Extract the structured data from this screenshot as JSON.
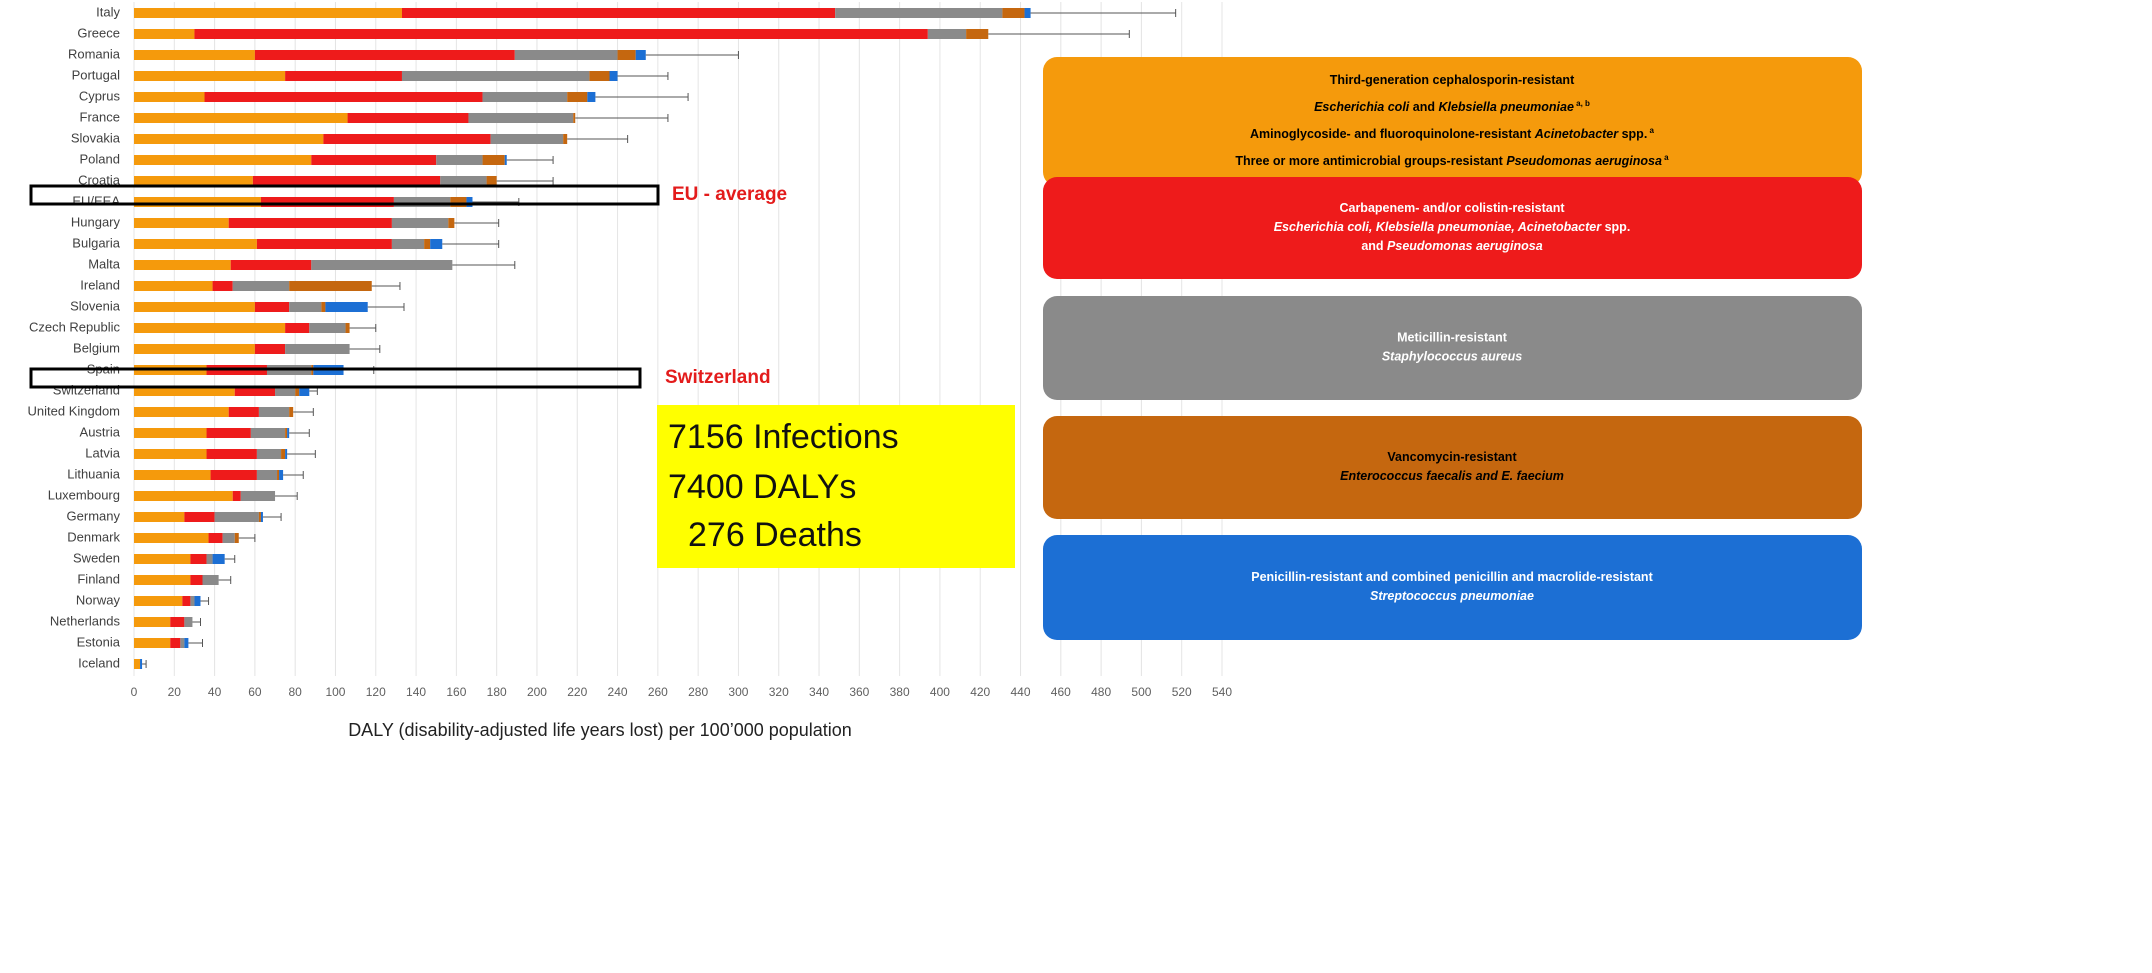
{
  "chart_data": {
    "type": "stacked-barh",
    "categories": [
      "Italy",
      "Greece",
      "Romania",
      "Portugal",
      "Cyprus",
      "France",
      "Slovakia",
      "Poland",
      "Croatia",
      "EU/EEA",
      "Hungary",
      "Bulgaria",
      "Malta",
      "Ireland",
      "Slovenia",
      "Czech Republic",
      "Belgium",
      "Spain",
      "Switzerland",
      "United Kingdom",
      "Austria",
      "Latvia",
      "Lithuania",
      "Luxembourg",
      "Germany",
      "Denmark",
      "Sweden",
      "Finland",
      "Norway",
      "Netherlands",
      "Estonia",
      "Iceland"
    ],
    "series": [
      {
        "color": "#f59a0c",
        "text_color": "#000000",
        "legend": [
          [
            {
              "text": "Third-generation cephalosporin-resistant"
            }
          ],
          [
            {
              "text": "Escherichia coli",
              "i": true
            },
            {
              "text": " and "
            },
            {
              "text": "Klebsiella pneumoniae",
              "i": true
            },
            {
              "text": " a, b",
              "sup": true
            }
          ],
          [
            {
              "text": "Aminoglycoside- and fluoroquinolone-resistant "
            },
            {
              "text": "Acinetobacter",
              "i": true
            },
            {
              "text": " spp."
            },
            {
              "text": " a",
              "sup": true
            }
          ],
          [
            {
              "text": "Three or more antimicrobial groups-resistant "
            },
            {
              "text": "Pseudomonas aeruginosa",
              "i": true
            },
            {
              "text": " a",
              "sup": true
            }
          ]
        ],
        "values": [
          133,
          30,
          60,
          75,
          35,
          106,
          94,
          88,
          59,
          63,
          47,
          61,
          48,
          39,
          60,
          75,
          60,
          36,
          50,
          47,
          36,
          36,
          38,
          49,
          25,
          37,
          28,
          28,
          24,
          18,
          18,
          3
        ]
      },
      {
        "color": "#ee1b1b",
        "text_color": "#ffffff",
        "legend": [
          [
            {
              "text": "Carbapenem- and/or colistin-resistant"
            }
          ],
          [
            {
              "text": "Escherichia coli, Klebsiella pneumoniae, Acinetobacter",
              "i": true
            },
            {
              "text": " spp."
            }
          ],
          [
            {
              "text": "and "
            },
            {
              "text": "Pseudomonas aeruginosa",
              "i": true
            }
          ]
        ],
        "values": [
          215,
          364,
          129,
          58,
          138,
          60,
          83,
          62,
          93,
          66,
          81,
          67,
          40,
          10,
          17,
          12,
          15,
          30,
          20,
          15,
          22,
          25,
          23,
          4,
          15,
          7,
          8,
          6,
          4,
          7,
          5,
          0
        ]
      },
      {
        "color": "#8a8a8a",
        "text_color": "#ffffff",
        "legend": [
          [
            {
              "text": "Meticillin-resistant"
            }
          ],
          [
            {
              "text": "Staphylococcus aureus",
              "i": true
            }
          ]
        ],
        "values": [
          83,
          19,
          51,
          93,
          42,
          52,
          36,
          23,
          23,
          28,
          28,
          16,
          70,
          28,
          16,
          18,
          32,
          22,
          10,
          15,
          17,
          12,
          10,
          17,
          22,
          6,
          3,
          8,
          2,
          4,
          2,
          0
        ]
      },
      {
        "color": "#c5670f",
        "text_color": "#000000",
        "legend": [
          [
            {
              "text": "Vancomycin-resistant"
            }
          ],
          [
            {
              "text": "Enterococcus faecalis  and E. faecium",
              "i": true
            }
          ]
        ],
        "values": [
          11,
          11,
          9,
          10,
          10,
          1,
          2,
          11,
          5,
          8,
          3,
          3,
          0,
          41,
          2,
          2,
          0,
          1,
          2,
          2,
          1,
          2,
          1,
          0,
          1,
          2,
          0,
          0,
          0,
          0,
          0,
          0
        ]
      },
      {
        "color": "#1c6fd4",
        "text_color": "#ffffff",
        "legend": [
          [
            {
              "text": "Penicillin-resistant and combined penicillin and macrolide-resistant"
            }
          ],
          [
            {
              "text": "Streptococcus pneumoniae",
              "i": true
            }
          ]
        ],
        "values": [
          3,
          0,
          5,
          4,
          4,
          0,
          0,
          1,
          0,
          3,
          0,
          6,
          0,
          0,
          21,
          0,
          0,
          15,
          5,
          0,
          1,
          1,
          2,
          0,
          1,
          0,
          6,
          0,
          3,
          0,
          2,
          1
        ]
      }
    ],
    "errors": [
      72,
      70,
      46,
      25,
      46,
      46,
      30,
      23,
      28,
      23,
      22,
      28,
      31,
      14,
      18,
      13,
      15,
      15,
      4,
      10,
      10,
      14,
      10,
      11,
      9,
      8,
      5,
      6,
      4,
      4,
      7,
      2
    ],
    "xlim": [
      0,
      540
    ],
    "xticks": [
      0,
      20,
      40,
      60,
      80,
      100,
      120,
      140,
      160,
      180,
      200,
      220,
      240,
      260,
      280,
      300,
      320,
      340,
      360,
      380,
      400,
      420,
      440,
      460,
      480,
      500,
      520,
      540
    ],
    "grid": true,
    "xlabel": "DALY (disability-adjusted life years lost) per 100’000 population",
    "annotations": [
      "EU - average",
      "Switzerland"
    ],
    "stats": [
      "7156 Infections",
      "7400 DALYs",
      "276 Deaths"
    ]
  }
}
